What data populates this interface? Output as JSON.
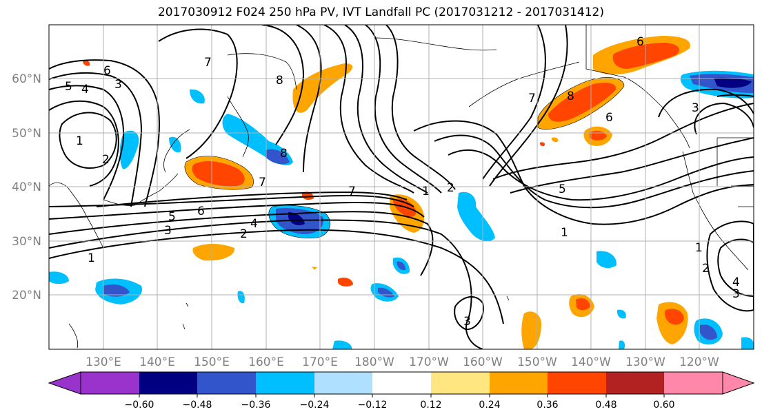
{
  "title": "2017030912 F024 250 hPa PV, IVT Landfall PC (2017031212 - 2017031412)",
  "lat_labels": [
    "60°N",
    "50°N",
    "40°N",
    "30°N",
    "20°N"
  ],
  "lon_labels": [
    "130°E",
    "140°E",
    "150°E",
    "160°E",
    "170°E",
    "180°W",
    "170°W",
    "160°W",
    "150°W",
    "140°W",
    "130°W",
    "120°W"
  ],
  "colorbar": {
    "colors": [
      "#9933cc",
      "#000080",
      "#3355cc",
      "#00bfff",
      "#b0e0ff",
      "#ffffff",
      "#ffe680",
      "#ffa500",
      "#ff4500",
      "#b22222",
      "#ff88aa"
    ],
    "tick_labels": [
      "−0.60",
      "−0.48",
      "−0.36",
      "−0.24",
      "−0.12",
      "0.12",
      "0.24",
      "0.36",
      "0.48",
      "0.60"
    ]
  },
  "contour_labels": [
    "1",
    "2",
    "3",
    "4",
    "5",
    "6",
    "7",
    "8"
  ]
}
